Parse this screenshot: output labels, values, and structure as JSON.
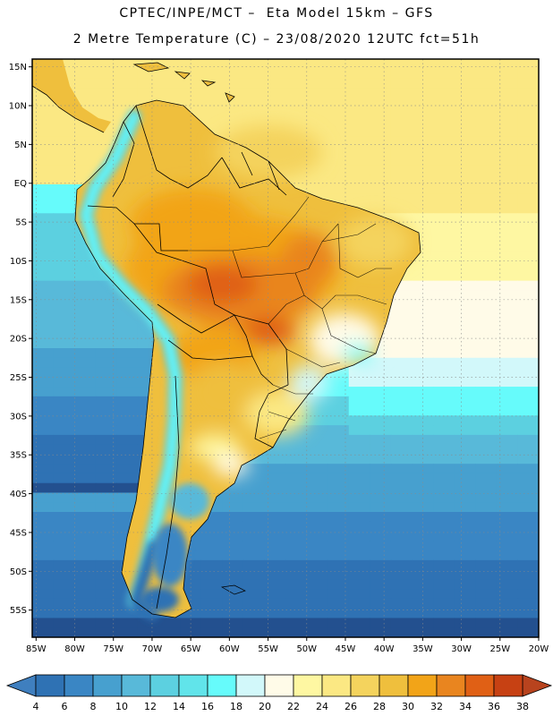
{
  "header": {
    "line1": "CPTEC/INPE/MCT –  Eta Model 15km – GFS",
    "line2": "2 Metre Temperature (C) – 23/08/2020 12UTC fct=51h"
  },
  "map": {
    "region": "South America",
    "lon_range": [
      -85.5,
      -20
    ],
    "lat_range": [
      -58.5,
      16
    ],
    "lat_ticks": [
      {
        "value": 15,
        "label": "15N"
      },
      {
        "value": 10,
        "label": "10N"
      },
      {
        "value": 5,
        "label": "5N"
      },
      {
        "value": 0,
        "label": "EQ"
      },
      {
        "value": -5,
        "label": "5S"
      },
      {
        "value": -10,
        "label": "10S"
      },
      {
        "value": -15,
        "label": "15S"
      },
      {
        "value": -20,
        "label": "20S"
      },
      {
        "value": -25,
        "label": "25S"
      },
      {
        "value": -30,
        "label": "30S"
      },
      {
        "value": -35,
        "label": "35S"
      },
      {
        "value": -40,
        "label": "40S"
      },
      {
        "value": -45,
        "label": "45S"
      },
      {
        "value": -50,
        "label": "50S"
      },
      {
        "value": -55,
        "label": "55S"
      }
    ],
    "lon_ticks": [
      {
        "value": -85,
        "label": "85W"
      },
      {
        "value": -80,
        "label": "80W"
      },
      {
        "value": -75,
        "label": "75W"
      },
      {
        "value": -70,
        "label": "70W"
      },
      {
        "value": -65,
        "label": "65W"
      },
      {
        "value": -60,
        "label": "60W"
      },
      {
        "value": -55,
        "label": "55W"
      },
      {
        "value": -50,
        "label": "50W"
      },
      {
        "value": -45,
        "label": "45W"
      },
      {
        "value": -40,
        "label": "40W"
      },
      {
        "value": -35,
        "label": "35W"
      },
      {
        "value": -30,
        "label": "30W"
      },
      {
        "value": -25,
        "label": "25W"
      },
      {
        "value": -20,
        "label": "20W"
      }
    ]
  },
  "colorbar": {
    "labels": [
      "4",
      "6",
      "8",
      "10",
      "12",
      "14",
      "16",
      "18",
      "20",
      "22",
      "24",
      "26",
      "28",
      "30",
      "32",
      "34",
      "36",
      "38"
    ],
    "low_color": "#3f7fbf",
    "high_color": "#b8431e",
    "colors": [
      "#2f72b4",
      "#3a86c4",
      "#47a0cf",
      "#58b9d9",
      "#5cd0e0",
      "#61e4ea",
      "#66fbfb",
      "#d2f8fa",
      "#fffbe8",
      "#fef7a2",
      "#fbe883",
      "#f4d35d",
      "#efbf3d",
      "#f2a418",
      "#e9851f",
      "#e06015",
      "#c74113"
    ],
    "ocean_scale": [
      {
        "t": -2,
        "c": "#23508f"
      },
      {
        "t": 4,
        "c": "#2f72b4"
      },
      {
        "t": 7,
        "c": "#3a86c4"
      },
      {
        "t": 10,
        "c": "#47a0cf"
      },
      {
        "t": 13,
        "c": "#58b9d9"
      },
      {
        "t": 16,
        "c": "#5cd0e0"
      },
      {
        "t": 18,
        "c": "#66fbfb"
      },
      {
        "t": 20,
        "c": "#d2f8fa"
      },
      {
        "t": 22,
        "c": "#fffbe8"
      },
      {
        "t": 24,
        "c": "#fef7a2"
      },
      {
        "t": 26,
        "c": "#fbe883"
      },
      {
        "t": 28,
        "c": "#f4d35d"
      },
      {
        "t": 30,
        "c": "#efbf3d"
      },
      {
        "t": 32,
        "c": "#f2a418"
      },
      {
        "t": 34,
        "c": "#e9851f"
      },
      {
        "t": 36,
        "c": "#e06015"
      },
      {
        "t": 38,
        "c": "#c74113"
      }
    ]
  }
}
